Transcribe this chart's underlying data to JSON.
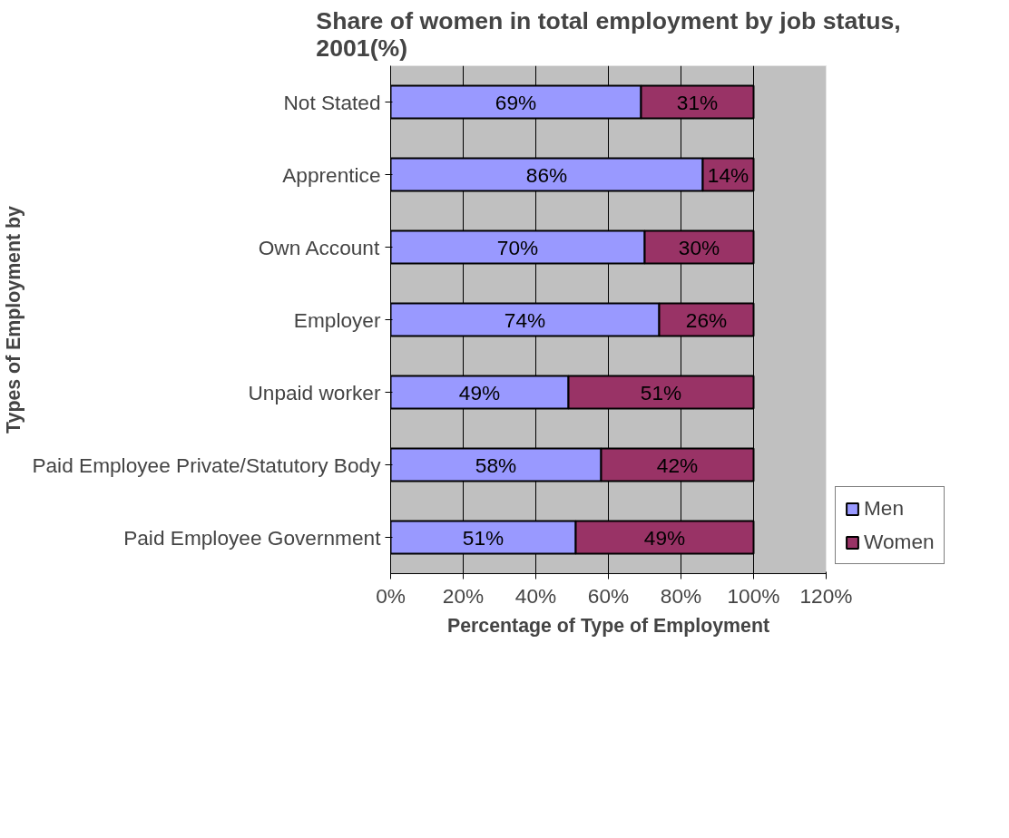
{
  "chart_data": {
    "type": "bar",
    "orientation": "horizontal",
    "stacked": true,
    "title": "Share of women in total employment by job status, 2001(%)",
    "xlabel": "Percentage of Type of Employment",
    "ylabel": "Types of Employment by",
    "categories": [
      "Not Stated",
      "Apprentice",
      "Own Account",
      "Employer",
      "Unpaid worker",
      "Paid Employee Private/Statutory Body",
      "Paid Employee Government"
    ],
    "series": [
      {
        "name": "Men",
        "color": "#9999ff",
        "values": [
          69,
          86,
          70,
          74,
          49,
          58,
          51
        ],
        "value_labels": [
          "69%",
          "86%",
          "70%",
          "74%",
          "49%",
          "58%",
          "51%"
        ]
      },
      {
        "name": "Women",
        "color": "#993366",
        "values": [
          31,
          14,
          30,
          26,
          51,
          42,
          49
        ],
        "value_labels": [
          "31%",
          "14%",
          "30%",
          "26%",
          "51%",
          "42%",
          "49%"
        ]
      }
    ],
    "xlim": [
      0,
      120
    ],
    "xticks": [
      {
        "value": 0,
        "label": "0%"
      },
      {
        "value": 20,
        "label": "20%"
      },
      {
        "value": 40,
        "label": "40%"
      },
      {
        "value": 60,
        "label": "60%"
      },
      {
        "value": 80,
        "label": "80%"
      },
      {
        "value": 100,
        "label": "100%"
      },
      {
        "value": 120,
        "label": "120%"
      }
    ],
    "grid": "x",
    "legend": "bottom right"
  }
}
